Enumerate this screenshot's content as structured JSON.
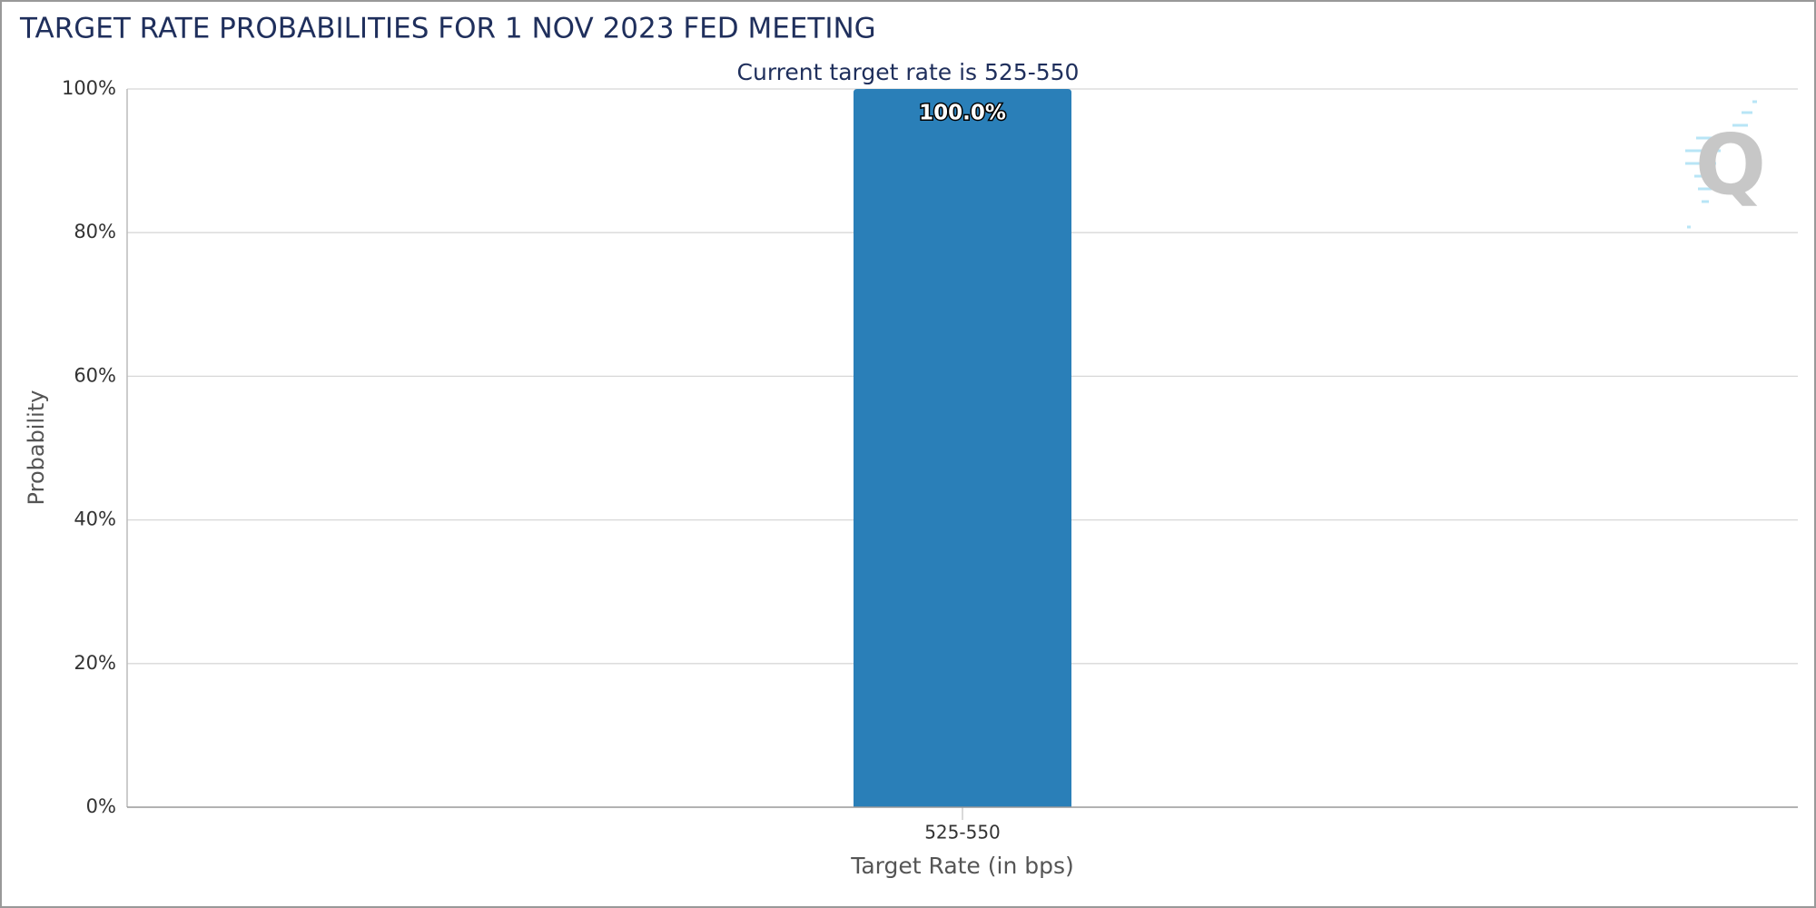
{
  "chart_data": {
    "type": "bar",
    "title": "TARGET RATE PROBABILITIES FOR 1 NOV 2023 FED MEETING",
    "subtitle": "Current target rate is 525-550",
    "x_label": "Target Rate (in bps)",
    "y_label": "Probability",
    "categories": [
      "525-550"
    ],
    "values": [
      100
    ],
    "value_labels": [
      "100.0%"
    ],
    "color": "#2a7fb8",
    "ylim": [
      0,
      100
    ],
    "yticks": [
      {
        "value": 0,
        "label": "0%"
      },
      {
        "value": 20,
        "label": "20%"
      },
      {
        "value": 40,
        "label": "40%"
      },
      {
        "value": 60,
        "label": "60%"
      },
      {
        "value": 80,
        "label": "80%"
      },
      {
        "value": 100,
        "label": "100%"
      }
    ],
    "grid": true
  }
}
